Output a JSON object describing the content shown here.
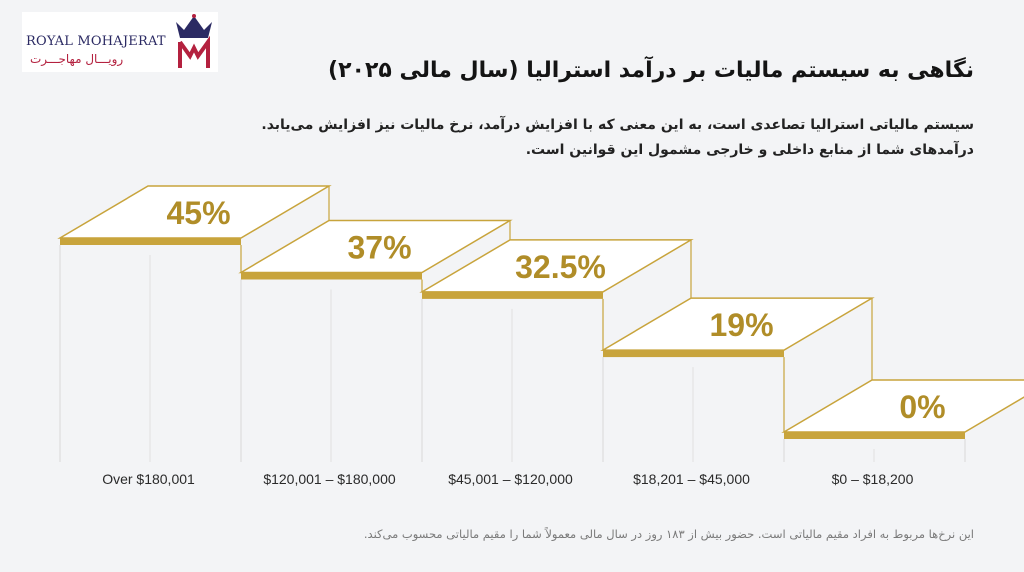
{
  "logo": {
    "brand_en": "ROYAL MOHAJERAT",
    "brand_fa": "رویـــال مهاجـــرت",
    "colors": {
      "navy": "#2b2a63",
      "red": "#b4213f"
    }
  },
  "title": "نگاهی به سیستم مالیات بر درآمد استرالیا (سال مالی ۲۰۲۵)",
  "description": [
    "سیستم مالیاتی استرالیا تصاعدی است، به این معنی که با افزایش درآمد، نرخ مالیات نیز افزایش می‌یابد.",
    "درآمدهای شما از منابع داخلی و خارجی مشمول این قوانین است."
  ],
  "footnote": "این نرخ‌ها مربوط به افراد مقیم مالیاتی است. حضور بیش از ۱۸۳ روز در سال مالی معمولاً شما را مقیم مالیاتی محسوب می‌کند.",
  "colors": {
    "gold": "#c8a43c",
    "gold_dark": "#b08d28",
    "background": "#f3f4f6",
    "step_face": "#ffffff"
  },
  "chart_data": {
    "type": "bar",
    "categories": [
      "Over $180,001",
      "$120,001 – $180,000",
      "$45,001 – $120,000",
      "$18,201 – $45,000",
      "$0 – $18,200"
    ],
    "values": [
      45,
      37,
      32.5,
      19,
      0
    ],
    "value_labels": [
      "45%",
      "37%",
      "32.5%",
      "19%",
      "0%"
    ],
    "unit": "%"
  }
}
